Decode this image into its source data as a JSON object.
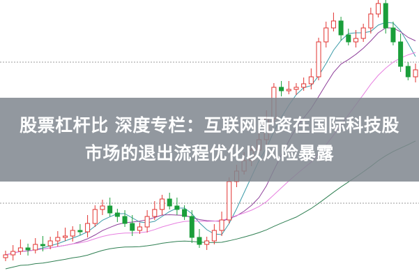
{
  "title": {
    "line1": "股票杠杆比 深度专栏：互联网配资在国际科技股",
    "line2": "市场的退出流程优化以风险暴露"
  },
  "chart_data": {
    "type": "candlestick",
    "closes": [
      35,
      40,
      45,
      42,
      50,
      48,
      55,
      60,
      62,
      70,
      68,
      80,
      100,
      105,
      95,
      90,
      80,
      70,
      75,
      90,
      100,
      115,
      105,
      100,
      90,
      60,
      50,
      55,
      70,
      85,
      140,
      155,
      170,
      185,
      200,
      230,
      275,
      270,
      272,
      275,
      280,
      290,
      340,
      360,
      370,
      350,
      340,
      345,
      360,
      380,
      395,
      360,
      340,
      305,
      290,
      300
    ],
    "up_color": "#e2322f",
    "down_color": "#1a9e3a",
    "ma_colors": [
      "#3a9aa8",
      "#8e3f9a",
      "#e77fe0",
      "#2f7f52"
    ],
    "grid": "dotted horizontal"
  }
}
